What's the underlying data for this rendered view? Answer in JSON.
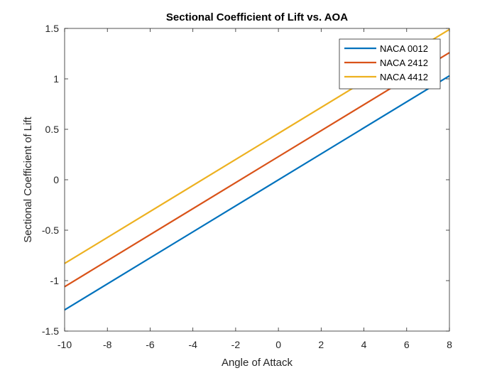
{
  "chart_data": {
    "type": "line",
    "title": "Sectional Coefficient of Lift vs. AOA",
    "xlabel": "Angle of Attack",
    "ylabel": "Sectional Coefficient of Lift",
    "xlim": [
      -10,
      8
    ],
    "ylim": [
      -1.5,
      1.5
    ],
    "x_ticks": [
      "-10",
      "-8",
      "-6",
      "-4",
      "-2",
      "0",
      "2",
      "4",
      "6",
      "8"
    ],
    "y_ticks": [
      "-1.5",
      "-1",
      "-0.5",
      "0",
      "0.5",
      "1",
      "1.5"
    ],
    "grid": false,
    "legend_position": "top-right",
    "series": [
      {
        "name": "NACA 0012",
        "color": "#0072BD",
        "x": [
          -10,
          8
        ],
        "y": [
          -1.29,
          1.03
        ]
      },
      {
        "name": "NACA 2412",
        "color": "#D95319",
        "x": [
          -10,
          8
        ],
        "y": [
          -1.06,
          1.26
        ]
      },
      {
        "name": "NACA 4412",
        "color": "#EDB120",
        "x": [
          -10,
          8
        ],
        "y": [
          -0.83,
          1.49
        ]
      }
    ]
  }
}
